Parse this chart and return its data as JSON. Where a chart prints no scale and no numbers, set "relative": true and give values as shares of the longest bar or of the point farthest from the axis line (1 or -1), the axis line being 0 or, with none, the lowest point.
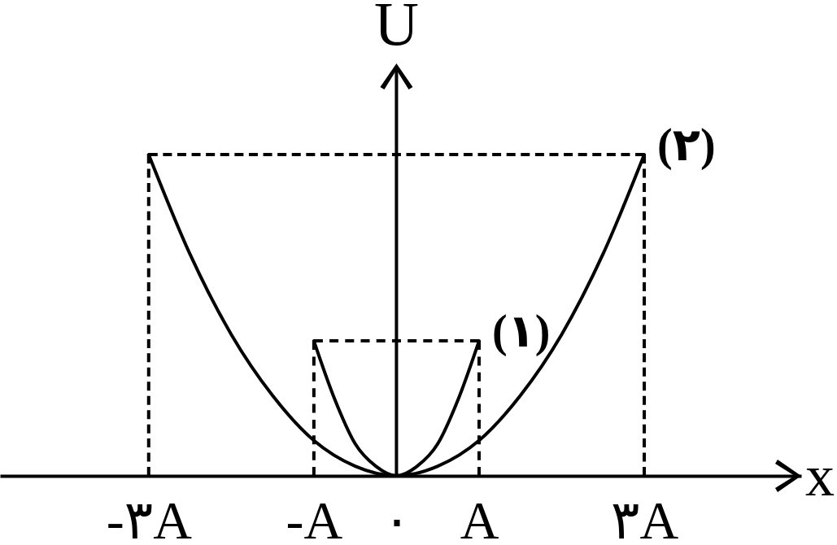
{
  "chart_data": {
    "type": "line",
    "relative": true,
    "xlabel": "x",
    "ylabel": "U",
    "xlim": [
      -4.8,
      4.9
    ],
    "xticks": [
      {
        "value": -3,
        "label": "-٣A"
      },
      {
        "value": -1,
        "label": "-A"
      },
      {
        "value": 0,
        "label": "٠"
      },
      {
        "value": 1,
        "label": "A"
      },
      {
        "value": 3,
        "label": "٣A"
      }
    ],
    "line_style": "solid",
    "series": [
      {
        "name": "(١)",
        "color": "#000000",
        "x": [
          -1,
          -0.75,
          -0.5,
          -0.25,
          0,
          0.25,
          0.5,
          0.75,
          1
        ],
        "values": [
          0.42,
          0.24,
          0.1,
          0.03,
          0,
          0.03,
          0.1,
          0.24,
          0.42
        ]
      },
      {
        "name": "(٢)",
        "color": "#000000",
        "x": [
          -3,
          -2.5,
          -2,
          -1.5,
          -1,
          -0.5,
          0,
          0.5,
          1,
          1.5,
          2,
          2.5,
          3
        ],
        "values": [
          1,
          0.69,
          0.44,
          0.25,
          0.11,
          0.03,
          0,
          0.03,
          0.11,
          0.25,
          0.44,
          0.69,
          1
        ]
      },
      {
        "color": "#000000",
        "line_style": "dashed",
        "x": [
          -1,
          1
        ],
        "values": [
          0.42,
          0.42
        ]
      },
      {
        "color": "#000000",
        "line_style": "dashed",
        "x": [
          -1,
          -1
        ],
        "values": [
          0,
          0.42
        ]
      },
      {
        "color": "#000000",
        "line_style": "dashed",
        "x": [
          1,
          1
        ],
        "values": [
          0,
          0.42
        ]
      },
      {
        "color": "#000000",
        "line_style": "dashed",
        "x": [
          -3,
          3
        ],
        "values": [
          1,
          1
        ]
      },
      {
        "color": "#000000",
        "line_style": "dashed",
        "x": [
          -3,
          -3
        ],
        "values": [
          0,
          1
        ]
      },
      {
        "color": "#000000",
        "line_style": "dashed",
        "x": [
          3,
          3
        ],
        "values": [
          0,
          1
        ]
      }
    ]
  }
}
